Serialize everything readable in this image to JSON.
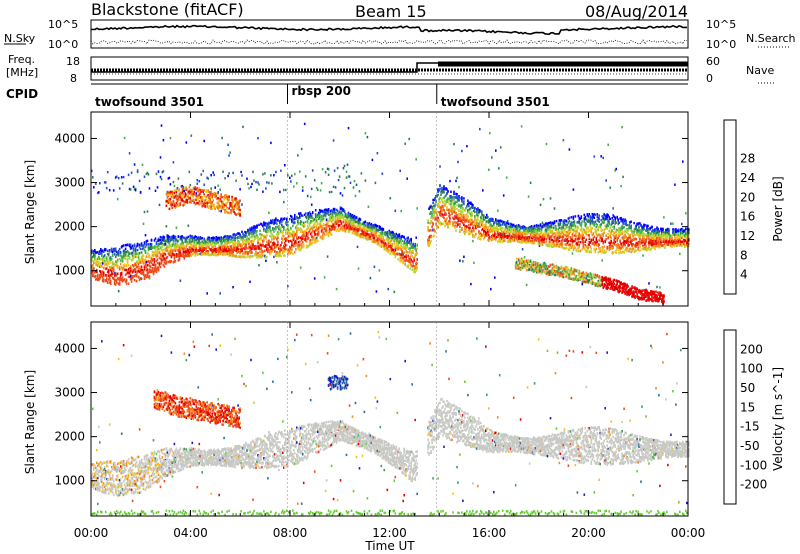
{
  "header": {
    "station": "Blackstone (fitACF)",
    "beam": "Beam 15",
    "date": "08/Aug/2014"
  },
  "noise_panel": {
    "left_label": "N.Sky",
    "right_label": "N.Search",
    "left_ticks": [
      "10^5",
      "10^0"
    ],
    "right_ticks": [
      "10^5",
      "10^0"
    ]
  },
  "freq_panel": {
    "left_label_1": "Freq.",
    "left_label_2": "[MHz]",
    "right_label": "Nave",
    "left_ticks": [
      "18",
      "8"
    ],
    "right_ticks": [
      "60",
      "0"
    ]
  },
  "cpid_panel": {
    "label": "CPID",
    "segments": [
      {
        "name": "twofsound 3501",
        "start_hour": 0,
        "end_hour": 7.9
      },
      {
        "name": "rbsp 200",
        "start_hour": 7.9,
        "end_hour": 13.9
      },
      {
        "name": "twofsound 3501",
        "start_hour": 13.9,
        "end_hour": 24
      }
    ]
  },
  "power_colorbar": {
    "title": "Power [dB]",
    "ticks": [
      "4",
      "8",
      "12",
      "16",
      "20",
      "24",
      "28"
    ],
    "colors": [
      "#0000ff",
      "#1f4bd6",
      "#2e7d5a",
      "#3fb04a",
      "#a8d63b",
      "#f2c21c",
      "#f28c1c",
      "#ef4a1a",
      "#e60000"
    ]
  },
  "velocity_colorbar": {
    "title": "Velocity [m s^-1]",
    "ticks": [
      "200",
      "100",
      "50",
      "15",
      "-15",
      "-50",
      "-100",
      "-200"
    ],
    "colors": [
      "#1a1acc",
      "#2e6e9e",
      "#3f9e5a",
      "#66cc33",
      "#c8c8c4",
      "#f5c21c",
      "#f28c1c",
      "#ef4a1a",
      "#e60000"
    ]
  },
  "chart_data": [
    {
      "type": "heatmap",
      "name": "power",
      "ylabel": "Slant Range [km]",
      "x_unit": "hours UT",
      "xlim": [
        0,
        24
      ],
      "ylim": [
        200,
        4600
      ],
      "yticks": [
        1000,
        2000,
        3000,
        4000
      ],
      "features": [
        {
          "label": "main echo band",
          "hours": [
            0,
            1,
            2,
            3,
            4,
            6,
            8,
            10,
            11.5,
            13,
            14,
            16,
            18,
            20,
            22,
            24
          ],
          "range_km": [
            1050,
            950,
            1050,
            1350,
            1500,
            1500,
            1650,
            2100,
            1750,
            1200,
            2350,
            1850,
            1750,
            1700,
            1650,
            1700
          ],
          "peak_power_db": 26
        },
        {
          "label": "upper patch",
          "hours": [
            3,
            4,
            5,
            6
          ],
          "range_km": [
            2600,
            2750,
            2600,
            2450
          ],
          "peak_power_db": 24
        },
        {
          "label": "descending band",
          "hours": [
            17,
            19,
            21,
            22,
            23
          ],
          "range_km": [
            1200,
            1000,
            700,
            500,
            400
          ],
          "peak_power_db": 30
        }
      ]
    },
    {
      "type": "heatmap",
      "name": "velocity",
      "ylabel": "Slant Range [km]",
      "x_unit": "hours UT",
      "xlim": [
        0,
        24
      ],
      "ylim": [
        200,
        4600
      ],
      "yticks": [
        1000,
        2000,
        3000,
        4000
      ],
      "features": [
        {
          "label": "ground scatter band",
          "velocity_ms": 0
        },
        {
          "label": "receding patch",
          "hours": [
            2.5,
            3.5,
            4.5,
            6
          ],
          "range_km": [
            2900,
            2700,
            2600,
            2450
          ],
          "velocity_ms": -180
        },
        {
          "label": "approaching cluster",
          "hours": [
            9.5,
            10.3
          ],
          "range_km": [
            3100,
            3300
          ],
          "velocity_ms": 200
        }
      ]
    }
  ],
  "xaxis": {
    "ticks": [
      "00:00",
      "04:00",
      "08:00",
      "12:00",
      "16:00",
      "20:00",
      "00:00"
    ],
    "tick_hours": [
      0,
      4,
      8,
      12,
      16,
      20,
      24
    ],
    "label": "Time UT"
  }
}
